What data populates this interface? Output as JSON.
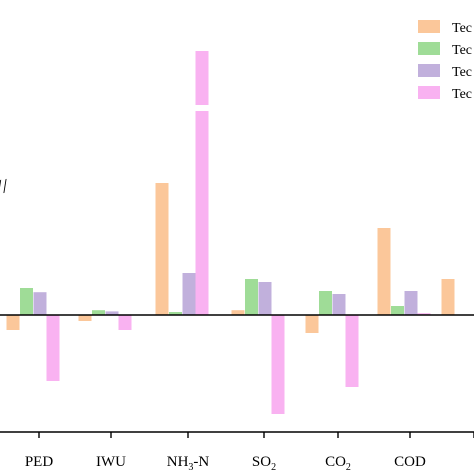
{
  "chart_data": {
    "type": "bar",
    "categories": [
      {
        "id": "PED",
        "main": "PED",
        "sub": "",
        "tail": ""
      },
      {
        "id": "IWU",
        "main": "IWU",
        "sub": "",
        "tail": ""
      },
      {
        "id": "NH3-N",
        "main": "NH",
        "sub": "3",
        "tail": "-N"
      },
      {
        "id": "SO2",
        "main": "SO",
        "sub": "2",
        "tail": ""
      },
      {
        "id": "CO2",
        "main": "CO",
        "sub": "2",
        "tail": ""
      },
      {
        "id": "COD",
        "main": "COD",
        "sub": "",
        "tail": ""
      },
      {
        "id": "extra",
        "main": "",
        "sub": "",
        "tail": ""
      }
    ],
    "series": [
      {
        "name": "Tec",
        "color": "#fbc79a",
        "values": [
          -2.5,
          -1.0,
          22.0,
          0.8,
          -3.0,
          14.5,
          6.0
        ]
      },
      {
        "name": "Tec",
        "color": "#9fdc97",
        "values": [
          4.5,
          0.8,
          0.5,
          6.0,
          4.0,
          1.5,
          null
        ]
      },
      {
        "name": "Tec",
        "color": "#c1b0dc",
        "values": [
          3.8,
          0.6,
          7.0,
          5.5,
          3.5,
          4.0,
          null
        ]
      },
      {
        "name": "Tec",
        "color": "#f9b2f1",
        "values": [
          -11.0,
          -2.5,
          125.0,
          -16.5,
          -12.0,
          0.3,
          null
        ]
      }
    ],
    "axis_break": {
      "from": 34,
      "to": 80,
      "mark": "//"
    },
    "ylim": [
      -30,
      125
    ],
    "grid": false,
    "legend_position": "top-right"
  }
}
